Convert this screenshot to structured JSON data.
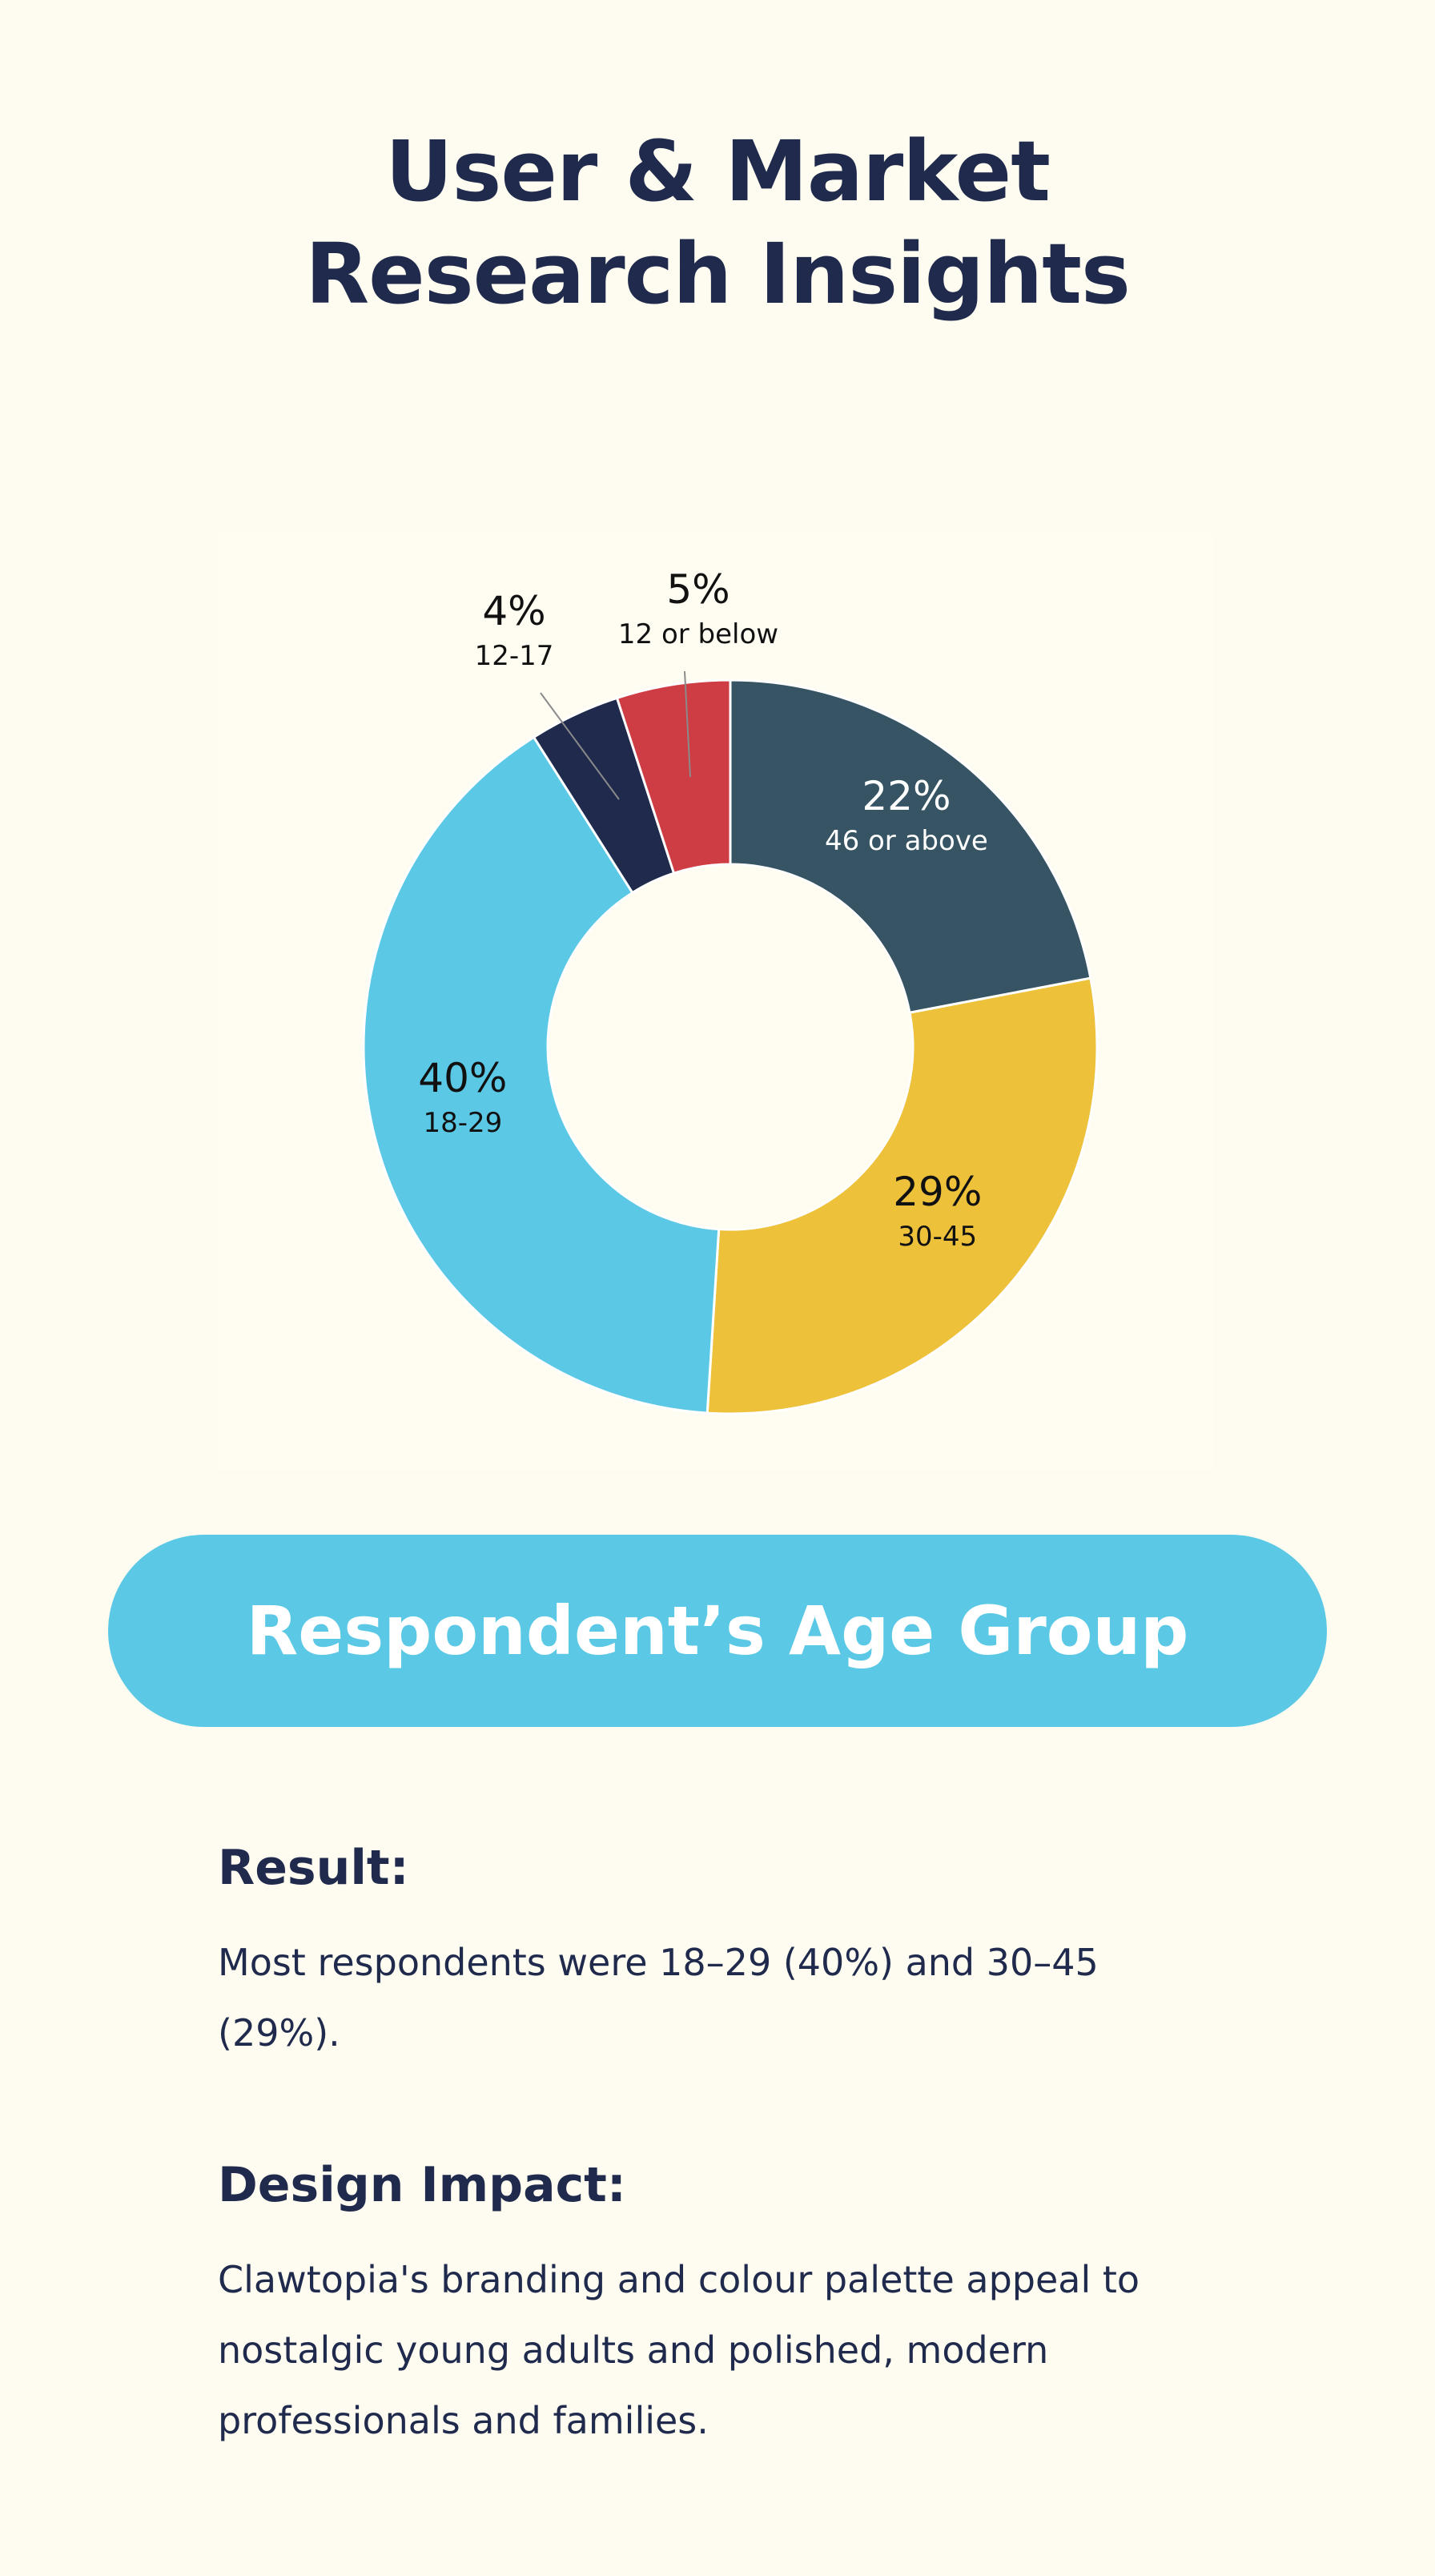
{
  "page": {
    "title_line1": "User & Market",
    "title_line2": "Research Insights"
  },
  "chart_data": {
    "type": "pie",
    "variant": "donut",
    "title": "Respondent’s Age Group",
    "slices": [
      {
        "label": "46 or above",
        "value": 22,
        "value_label": "22%",
        "color": "#365463",
        "label_color": "#ffffff"
      },
      {
        "label": "30-45",
        "value": 29,
        "value_label": "29%",
        "color": "#edc13a",
        "label_color": "#111111"
      },
      {
        "label": "18-29",
        "value": 40,
        "value_label": "40%",
        "color": "#5bc8e6",
        "label_color": "#111111"
      },
      {
        "label": "12-17",
        "value": 4,
        "value_label": "4%",
        "color": "#1f2a4d",
        "label_color": "#111111"
      },
      {
        "label": "12 or below",
        "value": 5,
        "value_label": "5%",
        "color": "#cf3d44",
        "label_color": "#111111"
      }
    ],
    "legend": "none",
    "grid": false
  },
  "pill": {
    "label": "Respondent’s Age Group"
  },
  "result": {
    "heading": "Result:",
    "text": "Most respondents were 18–29 (40%) and 30–45 (29%)."
  },
  "design_impact": {
    "heading": "Design Impact:",
    "text": "Clawtopia's branding and colour palette appeal to nostalgic young adults and polished, modern professionals and families."
  },
  "colors": {
    "background": "#fefcf0",
    "navy": "#1f2a4d",
    "accent_blue": "#5bc8e6"
  }
}
